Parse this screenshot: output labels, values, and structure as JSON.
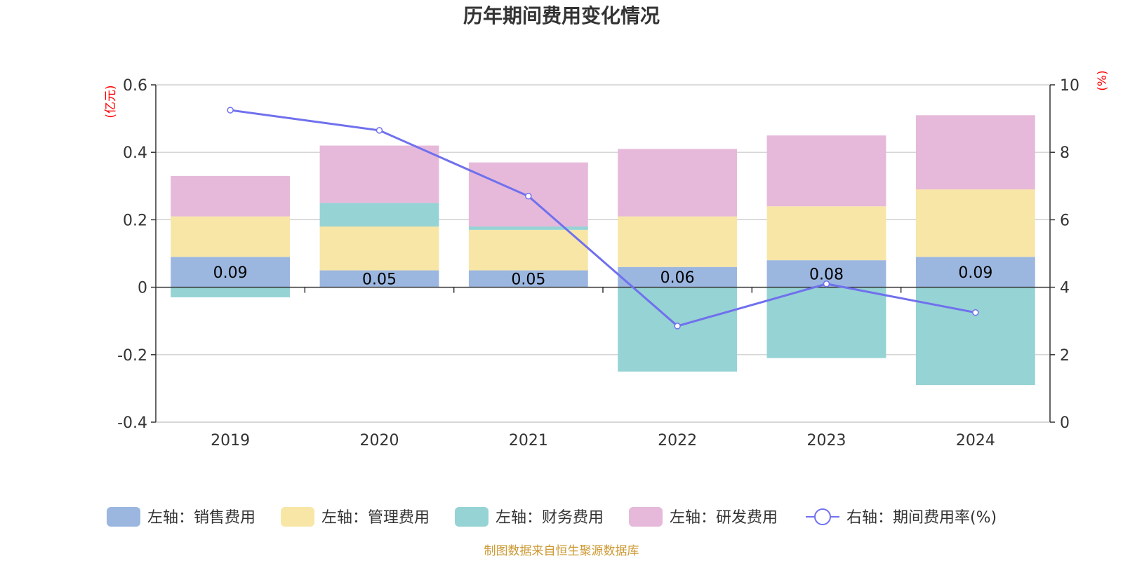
{
  "chart_data": {
    "type": "bar",
    "title": "历年期间费用变化情况",
    "categories": [
      "2019",
      "2020",
      "2021",
      "2022",
      "2023",
      "2024"
    ],
    "left_axis": {
      "unit": "(亿元)",
      "range": [
        -0.4,
        0.6
      ],
      "ticks": [
        0.6,
        0.4,
        0.2,
        0,
        -0.2,
        -0.4
      ],
      "tick_labels": [
        "0.6",
        "0.4",
        "0.2",
        "0",
        "-0.2",
        "-0.4"
      ]
    },
    "right_axis": {
      "unit": "(%)",
      "range": [
        0,
        10
      ],
      "ticks": [
        10,
        8,
        6,
        4,
        2,
        0
      ],
      "tick_labels": [
        "10",
        "8",
        "6",
        "4",
        "2",
        "0"
      ]
    },
    "grid": true,
    "legend_position": "bottom",
    "series": [
      {
        "name": "左轴：销售费用",
        "type": "bar",
        "stack": true,
        "color": "#9bb7e0",
        "values": [
          0.09,
          0.05,
          0.05,
          0.06,
          0.08,
          0.09
        ]
      },
      {
        "name": "左轴：管理费用",
        "type": "bar",
        "stack": true,
        "color": "#f8e6a7",
        "values": [
          0.12,
          0.13,
          0.12,
          0.15,
          0.16,
          0.2
        ]
      },
      {
        "name": "左轴：财务费用",
        "type": "bar",
        "stack": true,
        "color": "#96d3d4",
        "values": [
          -0.03,
          0.07,
          0.01,
          -0.25,
          -0.21,
          -0.29
        ]
      },
      {
        "name": "左轴：研发费用",
        "type": "bar",
        "stack": true,
        "color": "#e6b9da",
        "values": [
          0.12,
          0.17,
          0.19,
          0.2,
          0.21,
          0.22
        ]
      },
      {
        "name": "右轴：期间费用率(%)",
        "type": "line",
        "color": "#7070ee",
        "values": [
          9.25,
          8.65,
          6.7,
          2.85,
          4.1,
          3.25
        ]
      }
    ],
    "data_labels": [
      "0.09",
      "0.05",
      "0.05",
      "0.06",
      "0.08",
      "0.09"
    ],
    "source": "制图数据来自恒生聚源数据库"
  }
}
